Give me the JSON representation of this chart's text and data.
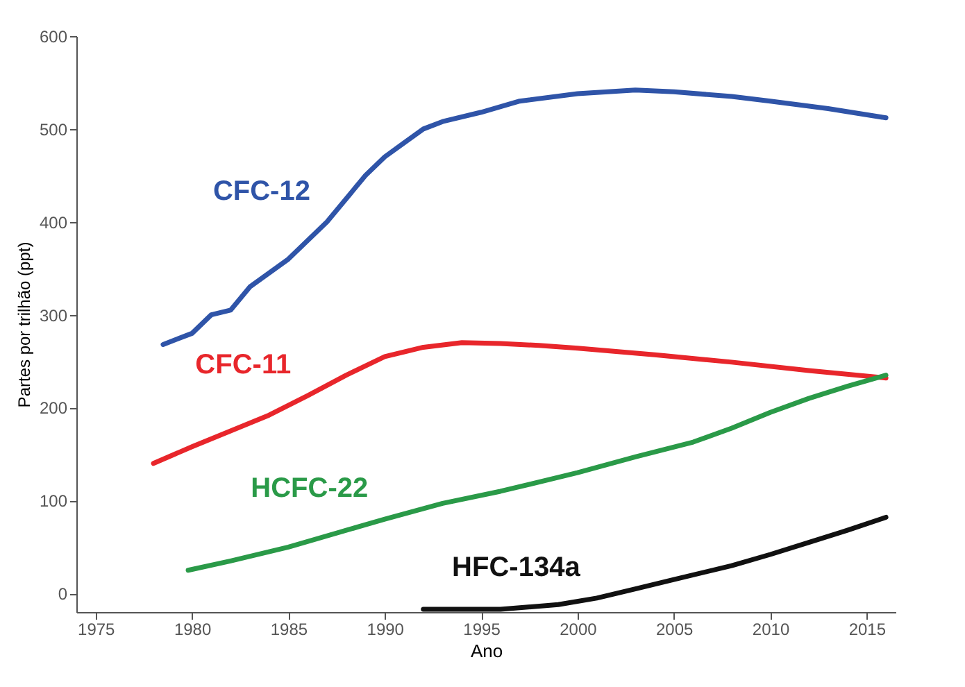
{
  "chart_data": {
    "type": "line",
    "xlabel": "Ano",
    "ylabel": "Partes por trilhão (ppt)",
    "xlim": [
      1974,
      2016.5
    ],
    "xticks": [
      1975,
      1980,
      1985,
      1990,
      1995,
      2000,
      2005,
      2010,
      2015
    ],
    "ylim": [
      -20,
      600
    ],
    "yticks": [
      0,
      100,
      200,
      300,
      400,
      500,
      600
    ],
    "grid": false,
    "legend": false,
    "line_style": "solid",
    "marker": "none",
    "series": [
      {
        "name": "CFC-12",
        "color": "#2f54a8",
        "x": [
          1978.5,
          1980,
          1981,
          1982,
          1983,
          1985,
          1987,
          1989,
          1990,
          1991,
          1992,
          1993,
          1995,
          1997,
          2000,
          2003,
          2005,
          2008,
          2010,
          2013,
          2016
        ],
        "values": [
          268,
          280,
          300,
          305,
          330,
          360,
          400,
          450,
          470,
          485,
          500,
          508,
          518,
          530,
          538,
          542,
          540,
          535,
          530,
          522,
          512
        ]
      },
      {
        "name": "CFC-11",
        "color": "#e8262b",
        "x": [
          1978,
          1980,
          1982,
          1984,
          1986,
          1988,
          1990,
          1992,
          1994,
          1996,
          1998,
          2000,
          2004,
          2008,
          2012,
          2016
        ],
        "values": [
          140,
          158,
          175,
          192,
          213,
          235,
          255,
          265,
          270,
          269,
          267,
          264,
          257,
          249,
          240,
          232
        ]
      },
      {
        "name": "HCFC-22",
        "color": "#2a9a48",
        "x": [
          1979.8,
          1982,
          1985,
          1988,
          1990,
          1993,
          1996,
          2000,
          2003,
          2006,
          2008,
          2010,
          2012,
          2014,
          2016
        ],
        "values": [
          25,
          35,
          50,
          68,
          80,
          97,
          110,
          130,
          147,
          163,
          178,
          195,
          210,
          223,
          235
        ]
      },
      {
        "name": "HFC-134a",
        "color": "#111111",
        "x": [
          1992,
          1996,
          1999,
          2001,
          2003,
          2005,
          2008,
          2010,
          2012,
          2014,
          2016
        ],
        "values": [
          -17,
          -17,
          -12,
          -5,
          5,
          15,
          30,
          42,
          55,
          68,
          82
        ]
      }
    ]
  }
}
